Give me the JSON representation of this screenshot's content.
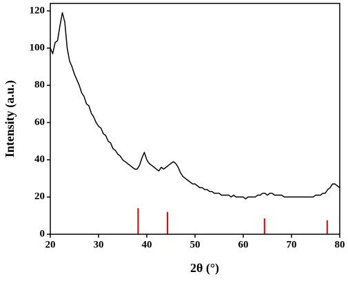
{
  "chart_data": {
    "type": "line",
    "xlabel": "2θ (°)",
    "ylabel": "Intensity (a.u.)",
    "xlim": [
      20,
      80
    ],
    "ylim": [
      0,
      124
    ],
    "xticks": [
      20,
      30,
      40,
      50,
      60,
      70,
      80
    ],
    "yticks": [
      0,
      20,
      40,
      60,
      80,
      100,
      120
    ],
    "x": [
      20,
      20.5,
      21,
      21.5,
      22,
      22.5,
      23,
      23.5,
      24,
      24.5,
      25,
      25.5,
      26,
      26.5,
      27,
      27.5,
      28,
      28.5,
      29,
      29.5,
      30,
      30.5,
      31,
      31.5,
      32,
      32.5,
      33,
      33.5,
      34,
      34.5,
      35,
      35.5,
      36,
      36.5,
      37,
      37.5,
      38,
      38.5,
      39,
      39.5,
      40,
      40.5,
      41,
      41.5,
      42,
      42.5,
      43,
      43.5,
      44,
      44.5,
      45,
      45.5,
      46,
      46.5,
      47,
      47.5,
      48,
      48.5,
      49,
      49.5,
      50,
      50.5,
      51,
      51.5,
      52,
      52.5,
      53,
      53.5,
      54,
      54.5,
      55,
      55.5,
      56,
      56.5,
      57,
      57.5,
      58,
      58.5,
      59,
      59.5,
      60,
      60.5,
      61,
      61.5,
      62,
      62.5,
      63,
      63.5,
      64,
      64.5,
      65,
      65.5,
      66,
      66.5,
      67,
      67.5,
      68,
      68.5,
      69,
      69.5,
      70,
      70.5,
      71,
      71.5,
      72,
      72.5,
      73,
      73.5,
      74,
      74.5,
      75,
      75.5,
      76,
      76.5,
      77,
      77.5,
      78,
      78.5,
      79,
      79.5,
      80
    ],
    "series": [
      {
        "color": "#000000",
        "values": [
          100,
          97,
          103,
          104,
          112,
          119,
          114,
          100,
          93,
          90,
          86,
          83,
          80,
          76,
          74,
          70,
          69,
          65,
          63,
          60,
          58,
          57,
          54,
          53,
          50,
          49,
          46,
          45,
          43,
          42,
          40,
          39,
          38,
          37,
          36,
          35,
          35,
          37,
          41,
          44,
          40,
          38,
          37,
          36,
          35,
          34,
          36,
          35,
          36,
          37,
          38,
          39,
          38,
          36,
          33,
          31,
          30,
          29,
          28,
          27,
          27,
          26,
          25,
          25,
          24,
          24,
          23,
          23,
          22,
          22,
          22,
          21,
          21,
          21,
          21,
          20,
          21,
          20,
          20,
          20,
          20,
          19,
          20,
          20,
          20,
          20,
          21,
          21,
          22,
          22,
          21,
          22,
          22,
          21,
          21,
          21,
          21,
          20,
          20,
          20,
          20,
          20,
          20,
          20,
          20,
          20,
          20,
          20,
          20,
          20,
          21,
          21,
          21,
          22,
          22,
          24,
          25,
          27,
          27,
          26,
          25
        ]
      }
    ],
    "reference_lines": {
      "color": "#e00000",
      "x": [
        38.2,
        44.3,
        64.4,
        77.4
      ],
      "values": [
        14,
        12,
        8.5,
        7.5
      ]
    }
  }
}
